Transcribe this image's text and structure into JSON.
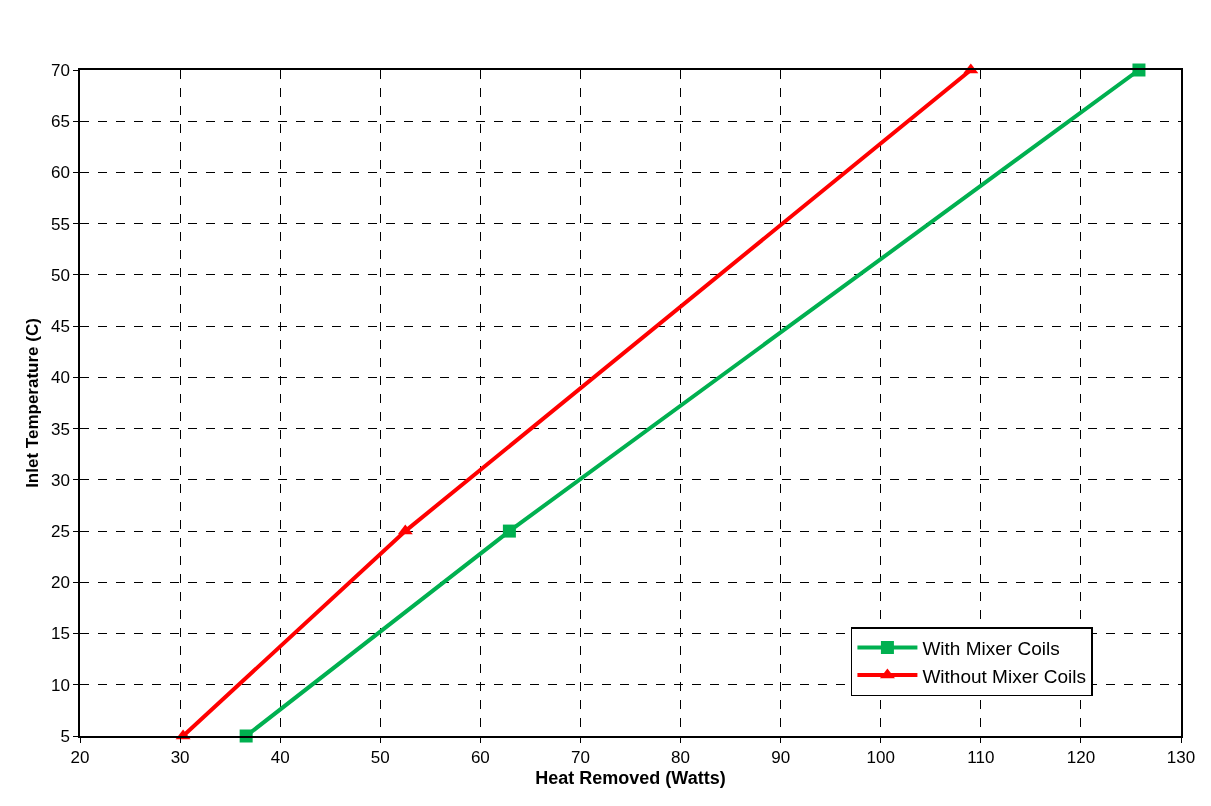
{
  "chart_data": {
    "type": "line",
    "xlabel": "Heat Removed (Watts)",
    "ylabel": "Inlet Temperature (C)",
    "xlim": [
      20,
      130
    ],
    "xticks": [
      20,
      30,
      40,
      50,
      60,
      70,
      80,
      90,
      100,
      110,
      120,
      130
    ],
    "ylim": [
      5,
      70
    ],
    "yticks": [
      5,
      10,
      15,
      20,
      25,
      30,
      35,
      40,
      45,
      50,
      55,
      60,
      65,
      70
    ],
    "grid": true,
    "legend": "bottom right",
    "line_style": "solid",
    "series": [
      {
        "name": "With Mixer Coils",
        "color": "#00b050",
        "marker": "square",
        "x": [
          36.6,
          62.9,
          125.8
        ],
        "values": [
          5,
          25,
          70
        ]
      },
      {
        "name": "Without Mixer Coils",
        "color": "#ff0000",
        "marker": "triangle",
        "x": [
          30.3,
          52.5,
          109
        ],
        "values": [
          5,
          25,
          70
        ]
      }
    ]
  }
}
